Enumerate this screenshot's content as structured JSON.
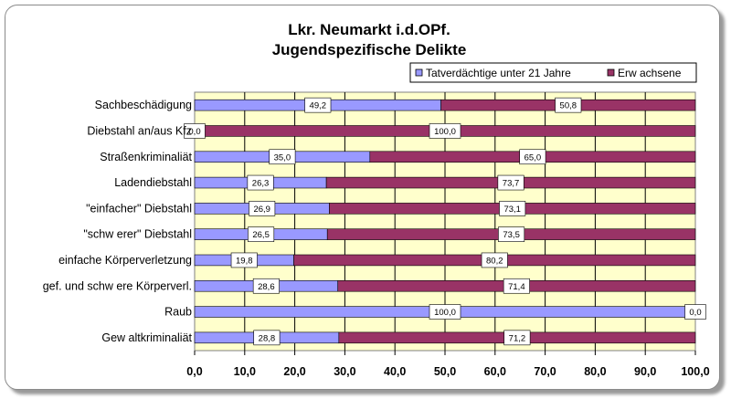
{
  "chart_data": {
    "type": "bar",
    "orientation": "horizontal",
    "stacked": "percent",
    "title": "Lkr. Neumarkt i.d.OPf.",
    "subtitle": "Jugendspezifische Delikte",
    "categories": [
      "Sachbeschädigung",
      "Diebstahl an/aus Kfz",
      "Straßenkriminaliät",
      "Ladendiebstahl",
      "\"einfacher\" Diebstahl",
      "\"schw erer\" Diebstahl",
      "einfache Körperverletzung",
      "gef. und schw ere Körperverl.",
      "Raub",
      "Gew altkriminaliät"
    ],
    "series": [
      {
        "name": "Tatverdächtige unter 21 Jahre",
        "color": "#9999ff",
        "values": [
          49.2,
          0.0,
          35.0,
          26.3,
          26.9,
          26.5,
          19.8,
          28.6,
          100.0,
          28.8
        ],
        "labels": [
          "49,2",
          "0,0",
          "35,0",
          "26,3",
          "26,9",
          "26,5",
          "19,8",
          "28,6",
          "100,0",
          "28,8"
        ]
      },
      {
        "name": "Erw achsene",
        "color": "#993366",
        "values": [
          50.8,
          100.0,
          65.0,
          73.7,
          73.1,
          73.5,
          80.2,
          71.4,
          0.0,
          71.2
        ],
        "labels": [
          "50,8",
          "100,0",
          "65,0",
          "73,7",
          "73,1",
          "73,5",
          "80,2",
          "71,4",
          "0,0",
          "71,2"
        ]
      }
    ],
    "xlim": [
      0,
      100
    ],
    "xticks": [
      "0,0",
      "10,0",
      "20,0",
      "30,0",
      "40,0",
      "50,0",
      "60,0",
      "70,0",
      "80,0",
      "90,0",
      "100,0"
    ],
    "grid": true,
    "legend": "top-right",
    "plot_background": "#ffffcc"
  }
}
